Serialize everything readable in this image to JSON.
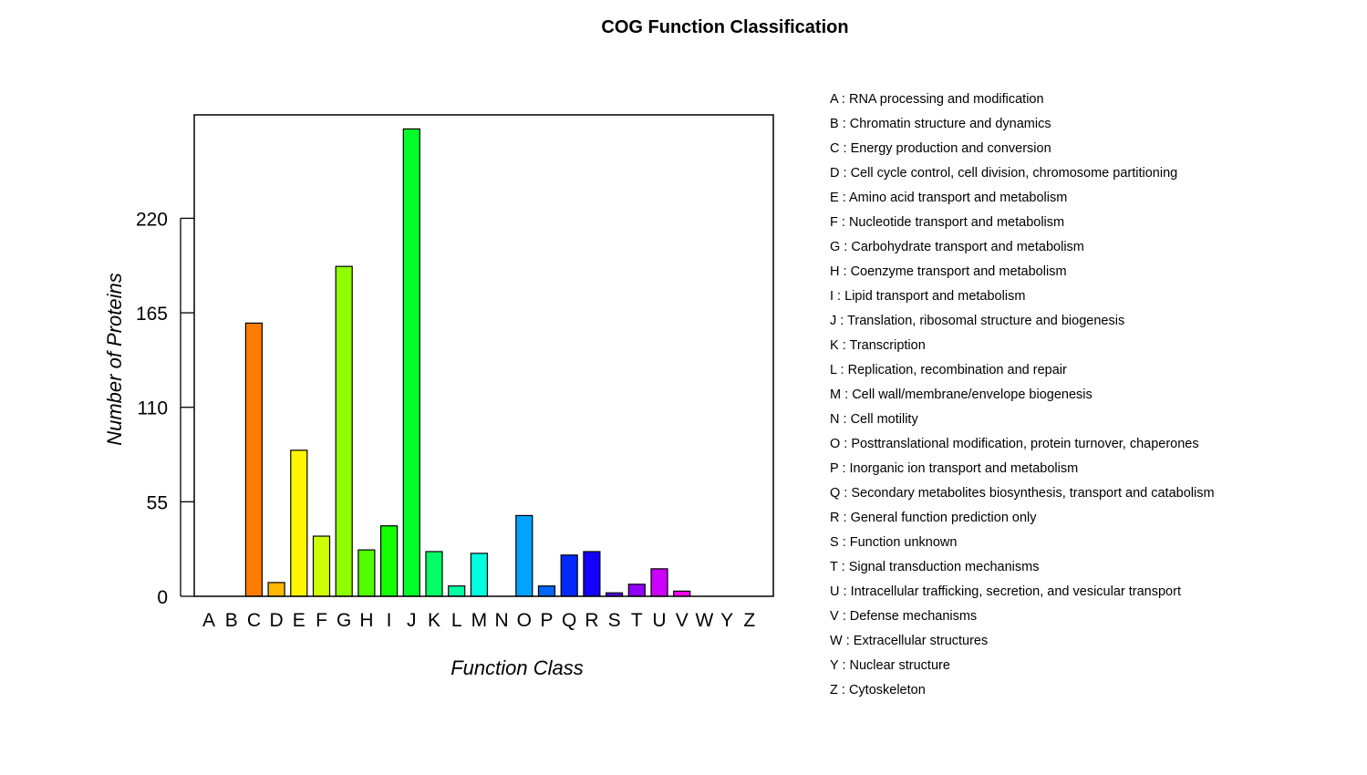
{
  "chart_data": {
    "type": "bar",
    "title": "COG Function Classification",
    "xlabel": "Function Class",
    "ylabel": "Number of Proteins",
    "ylim": [
      0,
      277
    ],
    "yticks": [
      0,
      55,
      110,
      165,
      220
    ],
    "grid": false,
    "legend_placement": "right",
    "categories": [
      "A",
      "B",
      "C",
      "D",
      "E",
      "F",
      "G",
      "H",
      "I",
      "J",
      "K",
      "L",
      "M",
      "N",
      "O",
      "P",
      "Q",
      "R",
      "S",
      "T",
      "U",
      "V",
      "W",
      "Y",
      "Z"
    ],
    "values": [
      0,
      0,
      159,
      8,
      85,
      35,
      192,
      27,
      41,
      272,
      26,
      6,
      25,
      0,
      47,
      6,
      24,
      26,
      2,
      7,
      16,
      3,
      0,
      0,
      0
    ],
    "colors": [
      "#ff0000",
      "#ff3d00",
      "#ff7a00",
      "#ffb800",
      "#fff500",
      "#ccff00",
      "#8fff00",
      "#52ff00",
      "#14ff00",
      "#00ff29",
      "#00ff66",
      "#00ffa3",
      "#00ffe0",
      "#00e0ff",
      "#00a3ff",
      "#0066ff",
      "#0029ff",
      "#1400ff",
      "#5200ff",
      "#8f00ff",
      "#cc00ff",
      "#ff00f5",
      "#ff00b8",
      "#ff007a",
      "#ff003d"
    ],
    "legend": [
      {
        "code": "A",
        "label": "RNA processing and modification"
      },
      {
        "code": "B",
        "label": "Chromatin structure and dynamics"
      },
      {
        "code": "C",
        "label": "Energy production and conversion"
      },
      {
        "code": "D",
        "label": "Cell cycle control, cell division, chromosome partitioning"
      },
      {
        "code": "E",
        "label": "Amino acid transport and metabolism"
      },
      {
        "code": "F",
        "label": "Nucleotide transport and metabolism"
      },
      {
        "code": "G",
        "label": "Carbohydrate transport and metabolism"
      },
      {
        "code": "H",
        "label": "Coenzyme transport and metabolism"
      },
      {
        "code": "I",
        "label": "Lipid transport and metabolism"
      },
      {
        "code": "J",
        "label": "Translation, ribosomal structure and biogenesis"
      },
      {
        "code": "K",
        "label": "Transcription"
      },
      {
        "code": "L",
        "label": "Replication, recombination and repair"
      },
      {
        "code": "M",
        "label": "Cell wall/membrane/envelope biogenesis"
      },
      {
        "code": "N",
        "label": "Cell motility"
      },
      {
        "code": "O",
        "label": "Posttranslational modification, protein turnover, chaperones"
      },
      {
        "code": "P",
        "label": "Inorganic ion transport and metabolism"
      },
      {
        "code": "Q",
        "label": "Secondary metabolites biosynthesis, transport and catabolism"
      },
      {
        "code": "R",
        "label": "General function prediction only"
      },
      {
        "code": "S",
        "label": "Function unknown"
      },
      {
        "code": "T",
        "label": "Signal transduction mechanisms"
      },
      {
        "code": "U",
        "label": "Intracellular trafficking, secretion, and vesicular transport"
      },
      {
        "code": "V",
        "label": "Defense mechanisms"
      },
      {
        "code": "W",
        "label": "Extracellular structures"
      },
      {
        "code": "Y",
        "label": "Nuclear structure"
      },
      {
        "code": "Z",
        "label": "Cytoskeleton"
      }
    ]
  }
}
